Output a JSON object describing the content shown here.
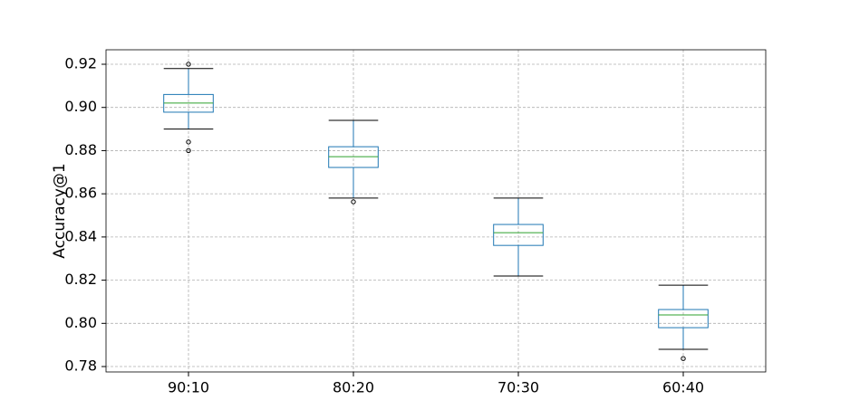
{
  "chart_data": {
    "type": "box",
    "ylabel": "Accuracy@1",
    "categories": [
      "90:10",
      "80:20",
      "70:30",
      "60:40"
    ],
    "boxes": [
      {
        "whislo": 0.89,
        "q1": 0.8978,
        "med": 0.902,
        "q3": 0.906,
        "whishi": 0.918,
        "fliers": [
          0.92,
          0.884,
          0.88
        ]
      },
      {
        "whislo": 0.858,
        "q1": 0.8722,
        "med": 0.8772,
        "q3": 0.8818,
        "whishi": 0.894,
        "fliers": [
          0.8563
        ]
      },
      {
        "whislo": 0.8219,
        "q1": 0.8361,
        "med": 0.842,
        "q3": 0.8458,
        "whishi": 0.858,
        "fliers": []
      },
      {
        "whislo": 0.788,
        "q1": 0.798,
        "med": 0.8039,
        "q3": 0.8064,
        "whishi": 0.8177,
        "fliers": [
          0.7837
        ]
      }
    ],
    "box_color": "#1f77b4",
    "median_color": "#2ca02c",
    "cap_color": "#000000",
    "ylim": [
      0.7775,
      0.9267
    ],
    "yticks": [
      0.78,
      {
        "value": 0.8,
        "label": "0.80"
      },
      0.82,
      0.84,
      0.86,
      0.88,
      {
        "value": 0.9,
        "label": "0.90"
      },
      0.92
    ],
    "grid": true
  }
}
